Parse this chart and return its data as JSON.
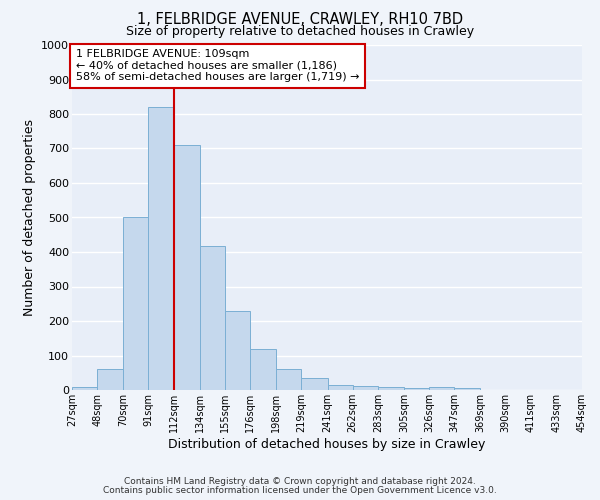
{
  "title": "1, FELBRIDGE AVENUE, CRAWLEY, RH10 7BD",
  "subtitle": "Size of property relative to detached houses in Crawley",
  "xlabel": "Distribution of detached houses by size in Crawley",
  "ylabel": "Number of detached properties",
  "bar_color": "#c5d8ed",
  "bar_edge_color": "#7bafd4",
  "background_color": "#e8eef8",
  "grid_color": "#ffffff",
  "fig_background": "#f0f4fa",
  "bin_edges": [
    27,
    48,
    70,
    91,
    112,
    134,
    155,
    176,
    198,
    219,
    241,
    262,
    283,
    305,
    326,
    347,
    369,
    390,
    411,
    433,
    454
  ],
  "bin_labels": [
    "27sqm",
    "48sqm",
    "70sqm",
    "91sqm",
    "112sqm",
    "134sqm",
    "155sqm",
    "176sqm",
    "198sqm",
    "219sqm",
    "241sqm",
    "262sqm",
    "283sqm",
    "305sqm",
    "326sqm",
    "347sqm",
    "369sqm",
    "390sqm",
    "411sqm",
    "433sqm",
    "454sqm"
  ],
  "values": [
    8,
    62,
    502,
    820,
    710,
    418,
    230,
    120,
    60,
    35,
    15,
    12,
    8,
    5,
    10,
    5,
    0,
    0,
    0,
    0
  ],
  "vline_x": 112,
  "vline_color": "#cc0000",
  "ylim": [
    0,
    1000
  ],
  "yticks": [
    0,
    100,
    200,
    300,
    400,
    500,
    600,
    700,
    800,
    900,
    1000
  ],
  "annotation_text": "1 FELBRIDGE AVENUE: 109sqm\n← 40% of detached houses are smaller (1,186)\n58% of semi-detached houses are larger (1,719) →",
  "annotation_box_color": "#ffffff",
  "annotation_box_edge": "#cc0000",
  "footer_line1": "Contains HM Land Registry data © Crown copyright and database right 2024.",
  "footer_line2": "Contains public sector information licensed under the Open Government Licence v3.0."
}
